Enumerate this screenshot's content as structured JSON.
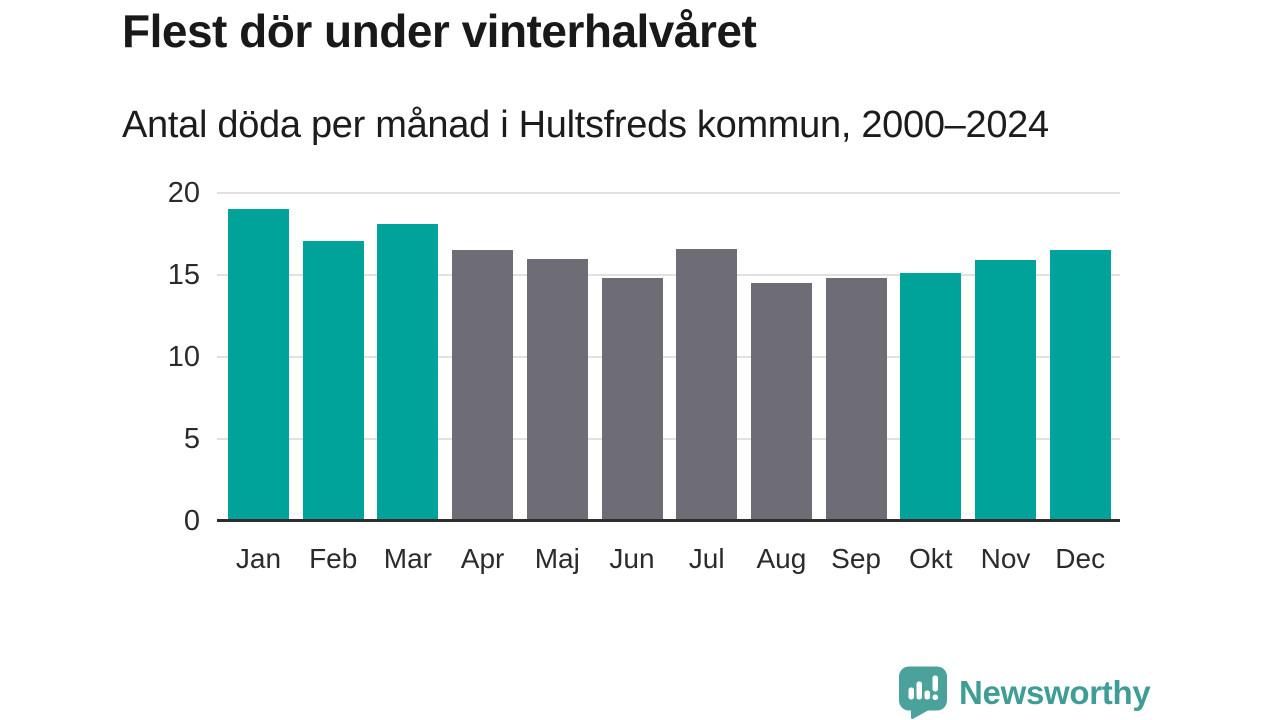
{
  "header": {
    "title": "Flest dör under vinterhalvåret",
    "subtitle": "Antal döda per månad i Hultsfreds kommun, 2000–2024"
  },
  "chart_data": {
    "type": "bar",
    "title": "Flest dör under vinterhalvåret",
    "subtitle": "Antal döda per månad i Hultsfreds kommun, 2000–2024",
    "categories": [
      "Jan",
      "Feb",
      "Mar",
      "Apr",
      "Maj",
      "Jun",
      "Jul",
      "Aug",
      "Sep",
      "Okt",
      "Nov",
      "Dec"
    ],
    "values": [
      19.0,
      17.1,
      18.1,
      16.5,
      16.0,
      14.8,
      16.6,
      14.5,
      14.8,
      15.1,
      15.9,
      16.5
    ],
    "highlighted": [
      true,
      true,
      true,
      false,
      false,
      false,
      false,
      false,
      false,
      true,
      true,
      true
    ],
    "xlabel": "",
    "ylabel": "",
    "ylim": [
      0,
      20
    ],
    "yticks": [
      0,
      5,
      10,
      15,
      20
    ],
    "grid": true,
    "legend": "none",
    "colors": {
      "highlight": "#00A39A",
      "default": "#6E6C74",
      "gridline": "#e1e1e1",
      "axis_line": "#2e2e2e",
      "tick_text": "#2b2b2b"
    }
  },
  "branding": {
    "name": "Newsworthy",
    "text_color": "#3F9D95",
    "icon_color": "#4AA29B",
    "icon": "newsworthy-speech-bubble-barchart-icon"
  }
}
